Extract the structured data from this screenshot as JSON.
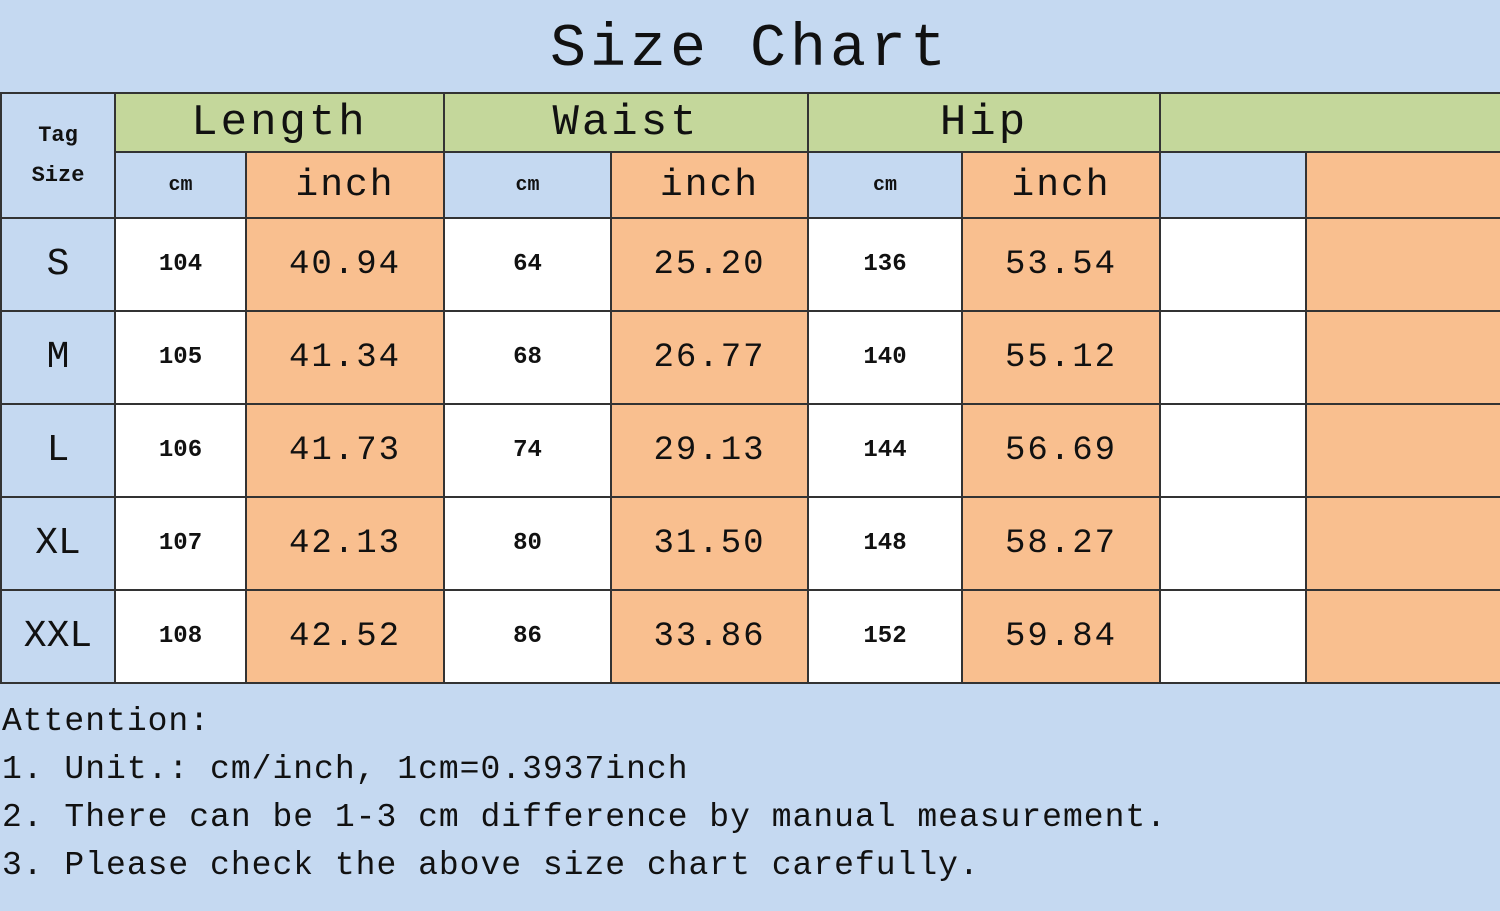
{
  "title": "Size Chart",
  "table": {
    "header": {
      "tag_size": "Tag Size",
      "groups": [
        "Length",
        "Waist",
        "Hip"
      ],
      "units": [
        "cm",
        "inch",
        "cm",
        "inch",
        "cm",
        "inch"
      ]
    },
    "rows": [
      [
        "S",
        "104",
        "40.94",
        "64",
        "25.20",
        "136",
        "53.54"
      ],
      [
        "M",
        "105",
        "41.34",
        "68",
        "26.77",
        "140",
        "55.12"
      ],
      [
        "L",
        "106",
        "41.73",
        "74",
        "29.13",
        "144",
        "56.69"
      ],
      [
        "XL",
        "107",
        "42.13",
        "80",
        "31.50",
        "148",
        "58.27"
      ],
      [
        "XXL",
        "108",
        "42.52",
        "86",
        "33.86",
        "152",
        "59.84"
      ]
    ]
  },
  "notes": {
    "heading": "Attention:",
    "items": [
      "1. Unit.: cm/inch, 1cm=0.3937inch",
      "2. There can be 1-3 cm difference by manual measurement.",
      "3. Please check the above size chart carefully."
    ]
  }
}
